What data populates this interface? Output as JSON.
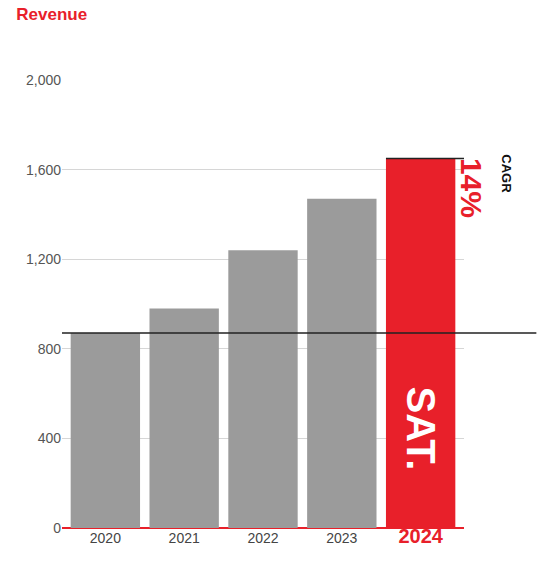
{
  "chart_data": {
    "type": "bar",
    "title": "Revenue",
    "categories": [
      "2020",
      "2021",
      "2022",
      "2023",
      "2024"
    ],
    "values": [
      870,
      980,
      1240,
      1470,
      1650
    ],
    "colors": [
      "#9b9b9b",
      "#9b9b9b",
      "#9b9b9b",
      "#9b9b9b",
      "#e8202a"
    ],
    "ylim": [
      0,
      2000
    ],
    "yticks": [
      0,
      400,
      800,
      {
        "value": 1200,
        "label": "1,200"
      },
      {
        "value": 1600,
        "label": "1,600"
      },
      {
        "value": 2000,
        "label": "2,000"
      }
    ],
    "grid": true,
    "annotations": [
      "CAGR",
      "14%",
      "SAT."
    ]
  }
}
